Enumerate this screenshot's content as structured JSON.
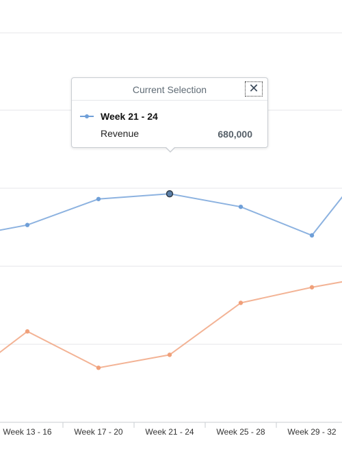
{
  "chart_data": {
    "type": "line",
    "categories": [
      "Week 13 - 16",
      "Week 17 - 20",
      "Week 21 - 24",
      "Week 25 - 28",
      "Week 29 - 32"
    ],
    "series": [
      {
        "values": [
          560000,
          660000,
          680000,
          630000,
          520000
        ],
        "color": "#6f9fd8"
      },
      {
        "values": [
          150000,
          10000,
          60000,
          260000,
          320000
        ],
        "color": "#f0a07a"
      }
    ],
    "grid": true,
    "legend": "none"
  },
  "tooltip": {
    "title": "Current Selection",
    "close_icon": "close-icon",
    "close_symbol": "✕",
    "series_label": "Week 21 - 24",
    "measure": "Revenue",
    "value": "680,000"
  }
}
